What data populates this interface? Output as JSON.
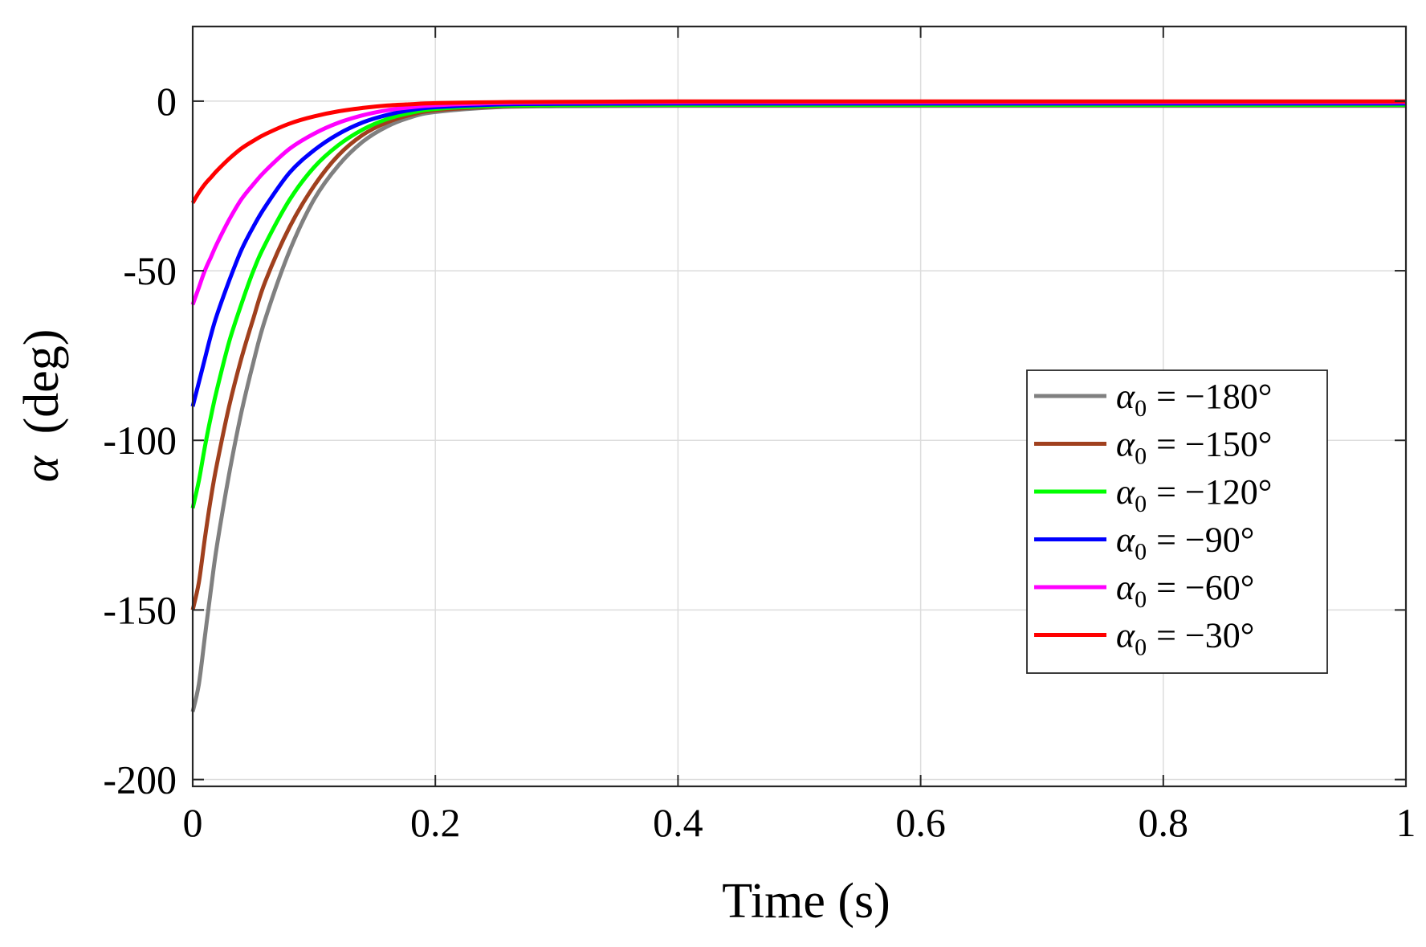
{
  "chart_data": {
    "type": "line",
    "title": "",
    "xlabel": "Time (s)",
    "ylabel_symbol": "α",
    "ylabel_unit": "(deg)",
    "xlim": [
      0,
      1
    ],
    "ylim": [
      -202,
      22
    ],
    "xticks": [
      0,
      0.2,
      0.4,
      0.6,
      0.8,
      1
    ],
    "xtick_labels": [
      "0",
      "0.2",
      "0.4",
      "0.6",
      "0.8",
      "1"
    ],
    "yticks": [
      -200,
      -150,
      -100,
      -50,
      0
    ],
    "ytick_labels": [
      "-200",
      "-150",
      "-100",
      "-50",
      "0"
    ],
    "grid": true,
    "legend_position": "center-right",
    "x": [
      0,
      0.005,
      0.01,
      0.015,
      0.02,
      0.03,
      0.04,
      0.05,
      0.06,
      0.08,
      0.1,
      0.12,
      0.14,
      0.16,
      0.18,
      0.2,
      0.25,
      0.3,
      0.4,
      0.5,
      0.6,
      0.7,
      0.8,
      0.9,
      1.0
    ],
    "series": [
      {
        "name": "α0 = −180°",
        "legend_symbol": "α",
        "legend_sub": "0",
        "legend_value": "= −180°",
        "color": "#808080",
        "values": [
          -180,
          -172,
          -158,
          -144,
          -131,
          -110,
          -92,
          -77,
          -64,
          -44,
          -29,
          -19,
          -12,
          -7.5,
          -4.7,
          -3.2,
          -1.8,
          -1.5,
          -1.4,
          -1.4,
          -1.4,
          -1.4,
          -1.4,
          -1.4,
          -1.4
        ]
      },
      {
        "name": "α0 = −150°",
        "legend_symbol": "α",
        "legend_sub": "0",
        "legend_value": "= −150°",
        "color": "#a0401e",
        "values": [
          -150,
          -142,
          -129,
          -117,
          -107,
          -90,
          -76,
          -64,
          -53,
          -37,
          -25,
          -16,
          -10,
          -6.3,
          -4.0,
          -2.7,
          -1.6,
          -1.3,
          -1.2,
          -1.2,
          -1.2,
          -1.2,
          -1.2,
          -1.2,
          -1.2
        ]
      },
      {
        "name": "α0 = −120°",
        "legend_symbol": "α",
        "legend_sub": "0",
        "legend_value": "= −120°",
        "color": "#00ff00",
        "values": [
          -120,
          -112,
          -102,
          -93,
          -85,
          -71,
          -60,
          -50,
          -42,
          -29,
          -19.5,
          -13,
          -8.4,
          -5.3,
          -3.4,
          -2.3,
          -1.4,
          -1.2,
          -1.1,
          -1.1,
          -1.1,
          -1.1,
          -1.1,
          -1.1,
          -1.1
        ]
      },
      {
        "name": "α0 = −90°",
        "legend_symbol": "α",
        "legend_sub": "0",
        "legend_value": "= −90°",
        "color": "#0000ff",
        "values": [
          -90,
          -83,
          -76,
          -69,
          -63,
          -53,
          -44,
          -37,
          -31,
          -21,
          -14.5,
          -9.7,
          -6.3,
          -4.1,
          -2.6,
          -1.8,
          -1.0,
          -0.8,
          -0.7,
          -0.7,
          -0.7,
          -0.7,
          -0.7,
          -0.7,
          -0.7
        ]
      },
      {
        "name": "α0 = −60°",
        "legend_symbol": "α",
        "legend_sub": "0",
        "legend_value": "= −60°",
        "color": "#ff00ff",
        "values": [
          -60,
          -55,
          -50,
          -46,
          -42,
          -35,
          -29,
          -24.5,
          -20.5,
          -14,
          -9.6,
          -6.4,
          -4.2,
          -2.7,
          -1.8,
          -1.2,
          -0.6,
          -0.4,
          -0.3,
          -0.3,
          -0.3,
          -0.3,
          -0.3,
          -0.3,
          -0.3
        ]
      },
      {
        "name": "α0 = −30°",
        "legend_symbol": "α",
        "legend_sub": "0",
        "legend_value": "= −30°",
        "color": "#ff0000",
        "values": [
          -30,
          -27,
          -24.5,
          -22.5,
          -20.5,
          -17,
          -14,
          -11.7,
          -9.7,
          -6.6,
          -4.5,
          -3.0,
          -2.0,
          -1.3,
          -0.9,
          -0.6,
          -0.3,
          -0.2,
          -0.1,
          -0.1,
          -0.1,
          -0.1,
          -0.1,
          -0.1,
          -0.1
        ]
      }
    ]
  }
}
